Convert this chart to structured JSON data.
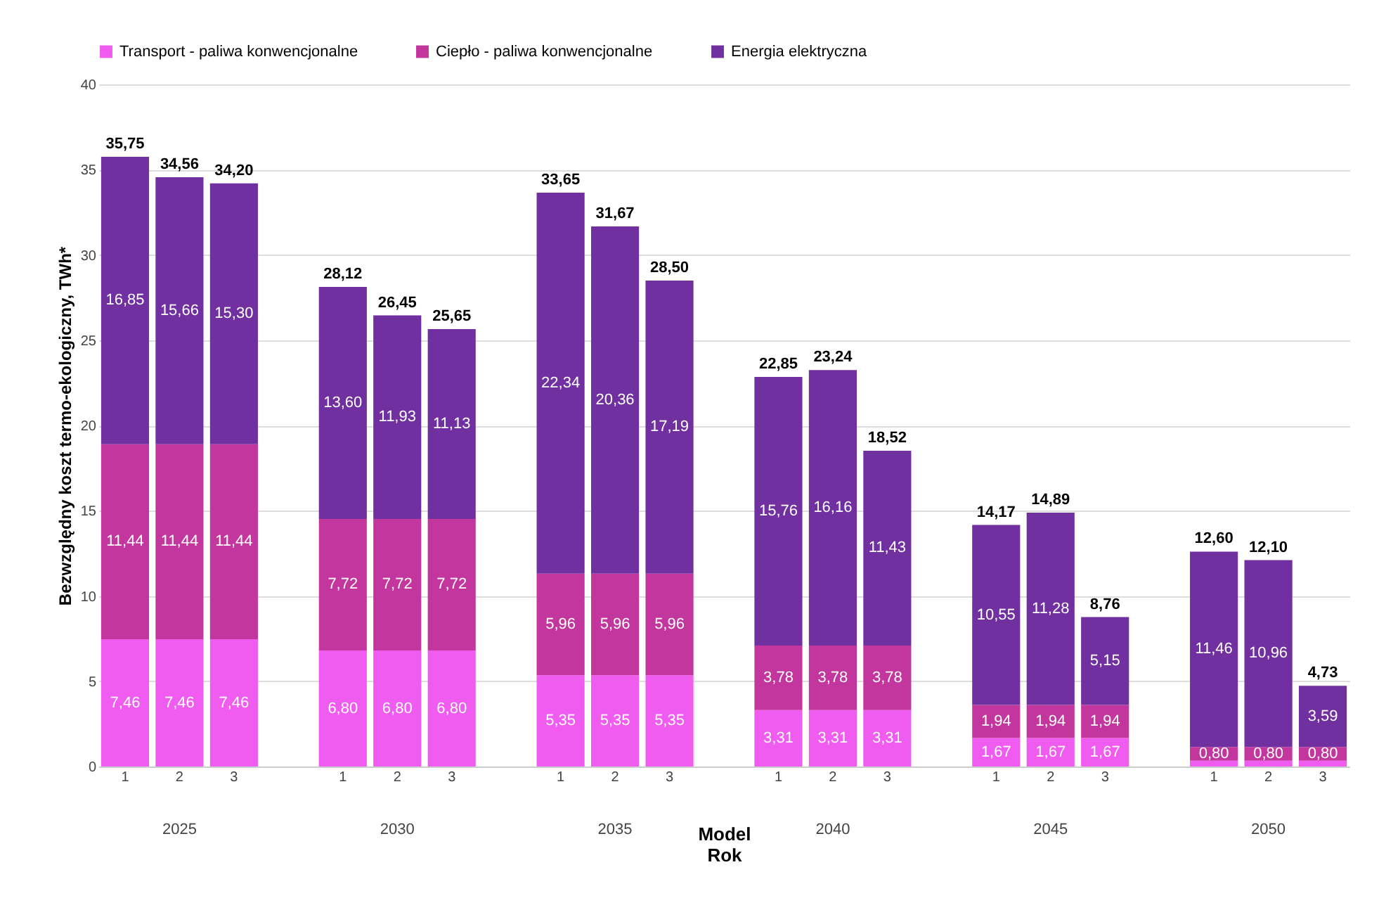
{
  "chart_data": {
    "type": "bar",
    "stacked": true,
    "xlabel": "Model\nRok",
    "ylabel": "Bezwzględny koszt termo-ekologiczny, TWh*",
    "categories": [
      "1",
      "2",
      "3",
      "1",
      "2",
      "3",
      "1",
      "2",
      "3",
      "1",
      "2",
      "3",
      "1",
      "2",
      "3",
      "1",
      "2",
      "3"
    ],
    "series": [
      {
        "name": "Transport - paliwa konwencjonalne",
        "color": "#f05cf0",
        "values": [
          7.46,
          7.46,
          7.46,
          6.8,
          6.8,
          6.8,
          5.35,
          5.35,
          5.35,
          3.31,
          3.31,
          3.31,
          1.67,
          1.67,
          1.67,
          0.34,
          0.34,
          0.34
        ],
        "value_labels": [
          "7,46",
          "7,46",
          "7,46",
          "6,80",
          "6,80",
          "6,80",
          "5,35",
          "5,35",
          "5,35",
          "3,31",
          "3,31",
          "3,31",
          "1,67",
          "1,67",
          "1,67",
          null,
          null,
          null
        ]
      },
      {
        "name": "Ciepło - paliwa konwencjonalne",
        "color": "#c2369e",
        "values": [
          11.44,
          11.44,
          11.44,
          7.72,
          7.72,
          7.72,
          5.96,
          5.96,
          5.96,
          3.78,
          3.78,
          3.78,
          1.94,
          1.94,
          1.94,
          0.8,
          0.8,
          0.8
        ],
        "value_labels": [
          "11,44",
          "11,44",
          "11,44",
          "7,72",
          "7,72",
          "7,72",
          "5,96",
          "5,96",
          "5,96",
          "3,78",
          "3,78",
          "3,78",
          "1,94",
          "1,94",
          "1,94",
          "0,80",
          "0,80",
          "0,80"
        ]
      },
      {
        "name": "Energia elektryczna",
        "color": "#7030a0",
        "values": [
          16.85,
          15.66,
          15.3,
          13.6,
          11.93,
          11.13,
          22.34,
          20.36,
          17.19,
          15.76,
          16.16,
          11.43,
          10.55,
          11.28,
          5.15,
          11.46,
          10.96,
          3.59
        ],
        "value_labels": [
          "16,85",
          "15,66",
          "15,30",
          "13,60",
          "11,93",
          "11,13",
          "22,34",
          "20,36",
          "17,19",
          "15,76",
          "16,16",
          "11,43",
          "10,55",
          "11,28",
          "5,15",
          "11,46",
          "10,96",
          "3,59"
        ]
      }
    ],
    "totals": [
      "35,75",
      "34,56",
      "34,20",
      "28,12",
      "26,45",
      "25,65",
      "33,65",
      "31,67",
      "28,50",
      "22,85",
      "23,24",
      "18,52",
      "14,17",
      "14,89",
      "8,76",
      "12,60",
      "12,10",
      "4,73"
    ],
    "annotations": [
      "2025",
      "2030",
      "2035",
      "2040",
      "2045",
      "2050"
    ],
    "ylim": [
      0,
      40
    ],
    "yticks": [
      0,
      5,
      10,
      15,
      20,
      25,
      30,
      35,
      40
    ],
    "grid": "y",
    "legend": "top"
  }
}
